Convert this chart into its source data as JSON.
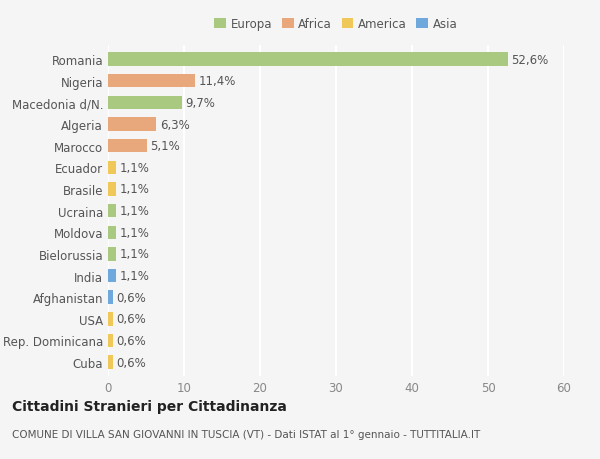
{
  "countries": [
    "Romania",
    "Nigeria",
    "Macedonia d/N.",
    "Algeria",
    "Marocco",
    "Ecuador",
    "Brasile",
    "Ucraina",
    "Moldova",
    "Bielorussia",
    "India",
    "Afghanistan",
    "USA",
    "Rep. Dominicana",
    "Cuba"
  ],
  "values": [
    52.6,
    11.4,
    9.7,
    6.3,
    5.1,
    1.1,
    1.1,
    1.1,
    1.1,
    1.1,
    1.1,
    0.6,
    0.6,
    0.6,
    0.6
  ],
  "labels": [
    "52,6%",
    "11,4%",
    "9,7%",
    "6,3%",
    "5,1%",
    "1,1%",
    "1,1%",
    "1,1%",
    "1,1%",
    "1,1%",
    "1,1%",
    "0,6%",
    "0,6%",
    "0,6%",
    "0,6%"
  ],
  "continents": [
    "Europa",
    "Africa",
    "Europa",
    "Africa",
    "Africa",
    "America",
    "America",
    "Europa",
    "Europa",
    "Europa",
    "Asia",
    "Asia",
    "America",
    "America",
    "America"
  ],
  "continent_colors": {
    "Europa": "#a8c97f",
    "Africa": "#e8a87c",
    "America": "#f0c85a",
    "Asia": "#6fa8dc"
  },
  "legend_order": [
    "Europa",
    "Africa",
    "America",
    "Asia"
  ],
  "xlim": [
    0,
    60
  ],
  "xticks": [
    0,
    10,
    20,
    30,
    40,
    50,
    60
  ],
  "title": "Cittadini Stranieri per Cittadinanza",
  "subtitle": "COMUNE DI VILLA SAN GIOVANNI IN TUSCIA (VT) - Dati ISTAT al 1° gennaio - TUTTITALIA.IT",
  "bg_color": "#f5f5f5",
  "bar_height": 0.62,
  "label_fontsize": 8.5,
  "tick_fontsize": 8.5,
  "title_fontsize": 10,
  "subtitle_fontsize": 7.5
}
